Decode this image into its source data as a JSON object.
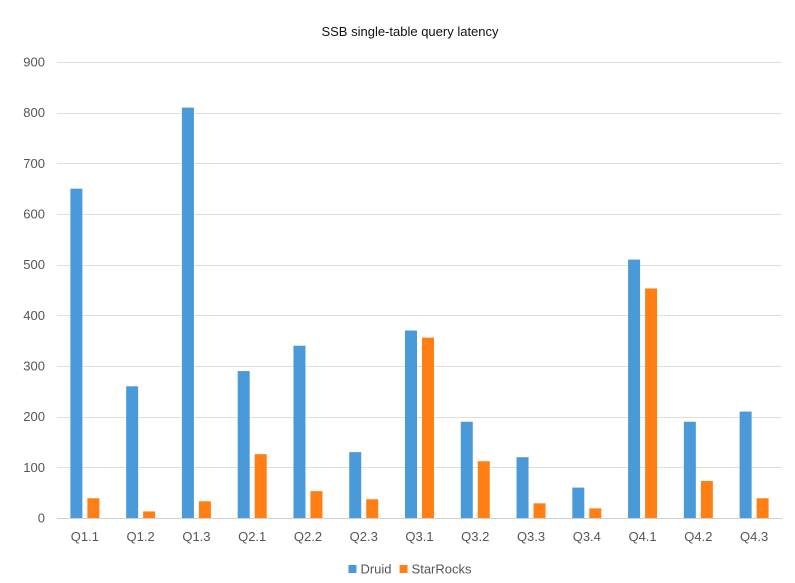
{
  "chart_data": {
    "type": "bar",
    "title": "SSB single-table query latency",
    "xlabel": "",
    "ylabel": "",
    "categories": [
      "Q1.1",
      "Q1.2",
      "Q1.3",
      "Q2.1",
      "Q2.2",
      "Q2.3",
      "Q3.1",
      "Q3.2",
      "Q3.3",
      "Q3.4",
      "Q4.1",
      "Q4.2",
      "Q4.3"
    ],
    "series": [
      {
        "name": "Druid",
        "color": "#4a9ad9",
        "values": [
          650,
          260,
          810,
          290,
          340,
          130,
          370,
          190,
          120,
          60,
          510,
          190,
          210
        ]
      },
      {
        "name": "StarRocks",
        "color": "#ff7f14",
        "values": [
          39,
          13,
          33,
          126,
          53,
          37,
          356,
          112,
          29,
          19,
          453,
          73,
          39
        ]
      }
    ],
    "ylim": [
      0,
      900
    ],
    "yticks": [
      0,
      100,
      200,
      300,
      400,
      500,
      600,
      700,
      800,
      900
    ],
    "grid": true,
    "legend_position": "bottom-center"
  }
}
